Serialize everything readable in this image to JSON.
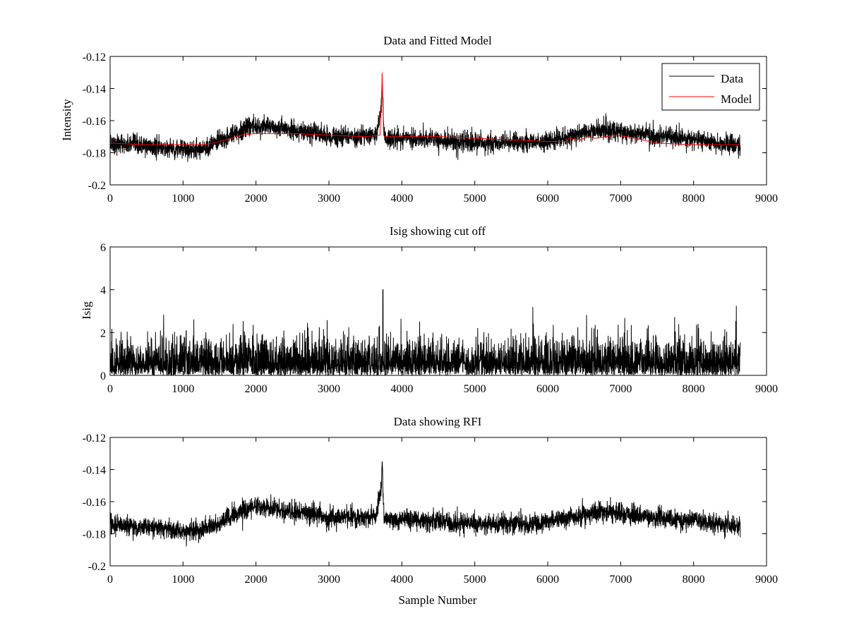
{
  "chart_data": [
    {
      "type": "line",
      "title": "Data and Fitted Model",
      "xlabel": "",
      "ylabel": "Intensity",
      "xlim": [
        0,
        9000
      ],
      "ylim": [
        -0.2,
        -0.12
      ],
      "xticks": [
        0,
        1000,
        2000,
        3000,
        4000,
        5000,
        6000,
        7000,
        8000,
        9000
      ],
      "yticks": [
        -0.2,
        -0.18,
        -0.16,
        -0.14,
        -0.12
      ],
      "xtick_labels": [
        "0",
        "1000",
        "2000",
        "3000",
        "4000",
        "5000",
        "6000",
        "7000",
        "8000",
        "9000"
      ],
      "ytick_labels": [
        "-0.2",
        "-0.18",
        "-0.16",
        "-0.14",
        "-0.12"
      ],
      "grid": false,
      "legend": {
        "placement": "top-right",
        "entries": [
          "Data",
          "Model"
        ]
      },
      "series": [
        {
          "name": "Data",
          "color": "#000000",
          "noise_amplitude": 0.0055,
          "x": [
            0,
            500,
            1000,
            1300,
            1500,
            1700,
            1900,
            2000,
            2200,
            2500,
            2800,
            3000,
            3400,
            3650,
            3720,
            3730,
            3740,
            3750,
            3760,
            3800,
            4000,
            4500,
            5000,
            5500,
            6000,
            6300,
            6500,
            6800,
            7000,
            7500,
            8000,
            8500,
            8640
          ],
          "values": [
            -0.174,
            -0.176,
            -0.178,
            -0.177,
            -0.173,
            -0.168,
            -0.164,
            -0.163,
            -0.164,
            -0.166,
            -0.168,
            -0.17,
            -0.17,
            -0.169,
            -0.15,
            -0.14,
            -0.15,
            -0.165,
            -0.17,
            -0.171,
            -0.171,
            -0.172,
            -0.174,
            -0.174,
            -0.173,
            -0.17,
            -0.168,
            -0.166,
            -0.167,
            -0.17,
            -0.172,
            -0.175,
            -0.176
          ]
        },
        {
          "name": "Model",
          "color": "#ff0000",
          "x": [
            0,
            500,
            1000,
            1300,
            1500,
            1800,
            2000,
            2200,
            2500,
            3000,
            3500,
            3700,
            3720,
            3730,
            3740,
            3750,
            3760,
            4000,
            4500,
            5000,
            5500,
            6000,
            6250,
            6300,
            6450,
            6550,
            6650,
            6800,
            6900,
            7100,
            7300,
            7500,
            8000,
            8500,
            8640
          ],
          "values": [
            -0.174,
            -0.175,
            -0.175,
            -0.175,
            -0.173,
            -0.169,
            -0.168,
            -0.168,
            -0.168,
            -0.169,
            -0.17,
            -0.169,
            -0.15,
            -0.13,
            -0.15,
            -0.169,
            -0.17,
            -0.17,
            -0.17,
            -0.171,
            -0.172,
            -0.173,
            -0.173,
            -0.171,
            -0.172,
            -0.17,
            -0.171,
            -0.17,
            -0.169,
            -0.17,
            -0.172,
            -0.174,
            -0.175,
            -0.175,
            -0.175
          ]
        }
      ]
    },
    {
      "type": "line",
      "title": "Isig showing cut off",
      "xlabel": "",
      "ylabel": "Isig",
      "xlim": [
        0,
        9000
      ],
      "ylim": [
        0,
        6
      ],
      "xticks": [
        0,
        1000,
        2000,
        3000,
        4000,
        5000,
        6000,
        7000,
        8000,
        9000
      ],
      "yticks": [
        0,
        2,
        4,
        6
      ],
      "xtick_labels": [
        "0",
        "1000",
        "2000",
        "3000",
        "4000",
        "5000",
        "6000",
        "7000",
        "8000",
        "9000"
      ],
      "ytick_labels": [
        "0",
        "2",
        "4",
        "6"
      ],
      "grid": false,
      "series": [
        {
          "color": "#000000",
          "typical_max": 2.5,
          "x_extent": [
            0,
            8640
          ],
          "peak": {
            "x": 3740,
            "value": 4.0
          }
        }
      ]
    },
    {
      "type": "line",
      "title": "Data showing RFI",
      "xlabel": "Sample Number",
      "ylabel": "",
      "xlim": [
        0,
        9000
      ],
      "ylim": [
        -0.2,
        -0.12
      ],
      "xticks": [
        0,
        1000,
        2000,
        3000,
        4000,
        5000,
        6000,
        7000,
        8000,
        9000
      ],
      "yticks": [
        -0.2,
        -0.18,
        -0.16,
        -0.14,
        -0.12
      ],
      "xtick_labels": [
        "0",
        "1000",
        "2000",
        "3000",
        "4000",
        "5000",
        "6000",
        "7000",
        "8000",
        "9000"
      ],
      "ytick_labels": [
        "-0.2",
        "-0.18",
        "-0.16",
        "-0.14",
        "-0.12"
      ],
      "grid": false,
      "series": [
        {
          "color": "#000000",
          "noise_amplitude": 0.0055,
          "x": [
            0,
            500,
            1000,
            1300,
            1500,
            1700,
            1900,
            2000,
            2200,
            2500,
            2800,
            3000,
            3400,
            3650,
            3720,
            3730,
            3740,
            3750,
            3760,
            3800,
            4000,
            4500,
            5000,
            5500,
            6000,
            6300,
            6500,
            6800,
            7000,
            7500,
            8000,
            8500,
            8640
          ],
          "values": [
            -0.174,
            -0.176,
            -0.178,
            -0.177,
            -0.173,
            -0.168,
            -0.164,
            -0.163,
            -0.164,
            -0.166,
            -0.168,
            -0.17,
            -0.17,
            -0.169,
            -0.15,
            -0.133,
            -0.15,
            -0.165,
            -0.17,
            -0.171,
            -0.171,
            -0.172,
            -0.174,
            -0.174,
            -0.173,
            -0.17,
            -0.168,
            -0.166,
            -0.167,
            -0.17,
            -0.172,
            -0.175,
            -0.176
          ]
        }
      ]
    }
  ]
}
